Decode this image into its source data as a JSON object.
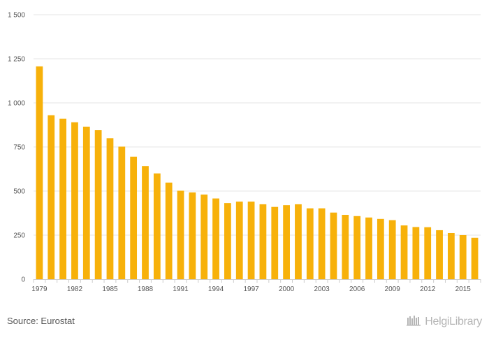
{
  "colors": {
    "bar": "#f7b10a",
    "grid": "#e6e6e6",
    "axis": "#cccccc",
    "text": "#555555"
  },
  "footer": {
    "source": "Source: Eurostat",
    "brand": "HelgiLibrary",
    "brand_icon": "library-logo-icon"
  },
  "chart_data": {
    "type": "bar",
    "title": "",
    "xlabel": "",
    "ylabel": "",
    "ylim": [
      0,
      1500
    ],
    "yticks": [
      0,
      250,
      500,
      750,
      1000,
      1250,
      1500
    ],
    "ytick_labels": [
      "0",
      "250",
      "500",
      "750",
      "1 000",
      "1 250",
      "1 500"
    ],
    "grid": true,
    "categories": [
      "1979",
      "1980",
      "1981",
      "1982",
      "1983",
      "1984",
      "1985",
      "1986",
      "1987",
      "1988",
      "1989",
      "1990",
      "1991",
      "1992",
      "1993",
      "1994",
      "1995",
      "1996",
      "1997",
      "1998",
      "1999",
      "2000",
      "2001",
      "2002",
      "2003",
      "2004",
      "2005",
      "2006",
      "2007",
      "2008",
      "2009",
      "2010",
      "2011",
      "2012",
      "2013",
      "2014",
      "2015",
      "2016"
    ],
    "xtick_labels": [
      "1979",
      "1982",
      "1985",
      "1988",
      "1991",
      "1994",
      "1997",
      "2000",
      "2003",
      "2006",
      "2009",
      "2012",
      "2015"
    ],
    "values": [
      1207,
      930,
      910,
      890,
      865,
      845,
      800,
      752,
      695,
      642,
      600,
      548,
      502,
      492,
      480,
      458,
      432,
      440,
      440,
      425,
      410,
      420,
      425,
      402,
      402,
      378,
      365,
      358,
      350,
      342,
      335,
      305,
      296,
      295,
      278,
      262,
      250,
      235
    ]
  }
}
